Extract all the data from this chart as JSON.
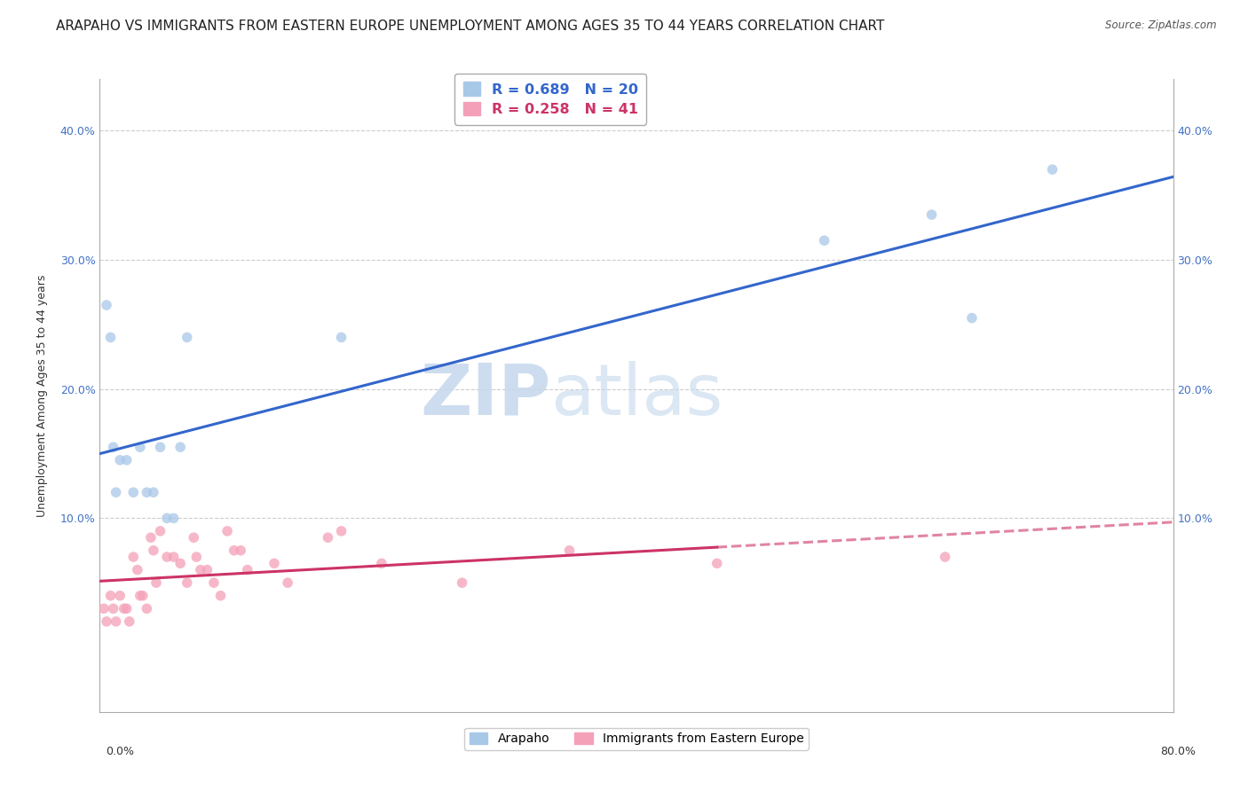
{
  "title": "ARAPAHO VS IMMIGRANTS FROM EASTERN EUROPE UNEMPLOYMENT AMONG AGES 35 TO 44 YEARS CORRELATION CHART",
  "source": "Source: ZipAtlas.com",
  "ylabel": "Unemployment Among Ages 35 to 44 years",
  "xlim": [
    0.0,
    0.8
  ],
  "ylim": [
    -0.05,
    0.44
  ],
  "yticks": [
    0.1,
    0.2,
    0.3,
    0.4
  ],
  "ytick_labels": [
    "10.0%",
    "20.0%",
    "30.0%",
    "40.0%"
  ],
  "blue_R": 0.689,
  "blue_N": 20,
  "pink_R": 0.258,
  "pink_N": 41,
  "blue_color": "#a8c8e8",
  "pink_color": "#f4a0b8",
  "blue_line_color": "#3366cc",
  "pink_line_color": "#cc3366",
  "background_color": "#ffffff",
  "watermark": "ZIPatlas",
  "watermark_color_zip": "#b8cce4",
  "watermark_color_atlas": "#b8cce4",
  "blue_x": [
    0.005,
    0.008,
    0.01,
    0.012,
    0.015,
    0.02,
    0.025,
    0.03,
    0.035,
    0.04,
    0.045,
    0.05,
    0.055,
    0.06,
    0.065,
    0.18,
    0.54,
    0.62,
    0.65,
    0.71
  ],
  "blue_y": [
    0.265,
    0.24,
    0.155,
    0.12,
    0.145,
    0.145,
    0.12,
    0.155,
    0.12,
    0.12,
    0.155,
    0.1,
    0.1,
    0.155,
    0.24,
    0.24,
    0.315,
    0.335,
    0.255,
    0.37
  ],
  "pink_x": [
    0.003,
    0.005,
    0.008,
    0.01,
    0.012,
    0.015,
    0.018,
    0.02,
    0.022,
    0.025,
    0.028,
    0.03,
    0.032,
    0.035,
    0.038,
    0.04,
    0.042,
    0.045,
    0.05,
    0.055,
    0.06,
    0.065,
    0.07,
    0.072,
    0.075,
    0.08,
    0.085,
    0.09,
    0.095,
    0.1,
    0.105,
    0.11,
    0.13,
    0.14,
    0.17,
    0.18,
    0.21,
    0.27,
    0.35,
    0.46,
    0.63
  ],
  "pink_y": [
    0.03,
    0.02,
    0.04,
    0.03,
    0.02,
    0.04,
    0.03,
    0.03,
    0.02,
    0.07,
    0.06,
    0.04,
    0.04,
    0.03,
    0.085,
    0.075,
    0.05,
    0.09,
    0.07,
    0.07,
    0.065,
    0.05,
    0.085,
    0.07,
    0.06,
    0.06,
    0.05,
    0.04,
    0.09,
    0.075,
    0.075,
    0.06,
    0.065,
    0.05,
    0.085,
    0.09,
    0.065,
    0.05,
    0.075,
    0.065,
    0.07
  ],
  "title_fontsize": 11,
  "axis_fontsize": 9,
  "tick_fontsize": 9,
  "marker_size": 70,
  "line_width": 2.2,
  "legend_label_blue": "R = 0.689   N = 20",
  "legend_label_pink": "R = 0.258   N = 41",
  "bottom_legend_blue": "Arapaho",
  "bottom_legend_pink": "Immigrants from Eastern Europe"
}
